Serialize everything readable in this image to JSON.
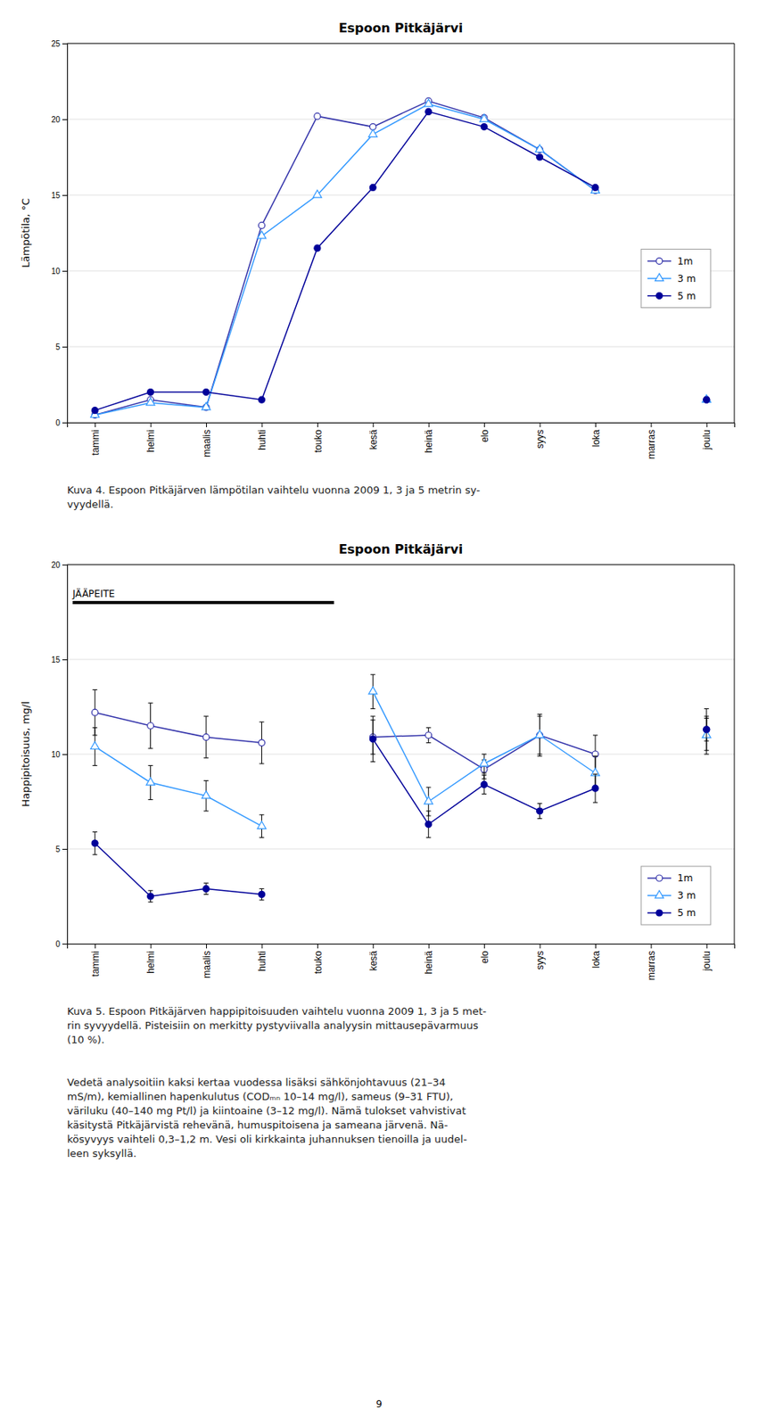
{
  "chart_data": [
    {
      "type": "line",
      "title": "Espoon Pitkäjärvi",
      "ylabel": "Lämpötila, °C",
      "categories": [
        "tammi",
        "helmi",
        "maalis",
        "huhti",
        "touko",
        "kesä",
        "heinä",
        "elo",
        "syys",
        "loka",
        "marras",
        "joulu"
      ],
      "series": [
        {
          "name": "1m",
          "color": "#3333AA",
          "marker": "circle-open",
          "values": [
            0.5,
            1.5,
            1.0,
            13.0,
            20.2,
            19.5,
            21.2,
            20.1,
            18.0,
            15.3,
            null,
            1.5
          ]
        },
        {
          "name": "3 m",
          "color": "#3399FF",
          "marker": "triangle-open",
          "values": [
            0.5,
            1.3,
            1.0,
            12.3,
            15.0,
            19.0,
            21.0,
            20.0,
            18.0,
            15.3,
            null,
            1.5
          ]
        },
        {
          "name": "5 m",
          "color": "#000099",
          "marker": "circle",
          "values": [
            0.8,
            2.0,
            2.0,
            1.5,
            11.5,
            15.5,
            20.5,
            19.5,
            17.5,
            15.5,
            null,
            1.5
          ]
        }
      ],
      "ylim": [
        0,
        25
      ],
      "yticks": [
        0,
        5,
        10,
        15,
        20,
        25
      ],
      "grid": true,
      "legend": "center right",
      "caption": "Kuva 4. Espoon Pitkäjärven lämpötilan vaihtelu vuonna 2009 1, 3 ja 5 metrin sy-\nvyydellä."
    },
    {
      "type": "line",
      "title": "Espoon Pitkäjärvi",
      "ylabel": "Happipitoisuus, mg/l",
      "categories": [
        "tammi",
        "helmi",
        "maalis",
        "huhti",
        "touko",
        "kesä",
        "heinä",
        "elo",
        "syys",
        "loka",
        "marras",
        "joulu"
      ],
      "series": [
        {
          "name": "1m",
          "color": "#3333AA",
          "marker": "circle-open",
          "values": [
            12.2,
            11.5,
            10.9,
            10.6,
            null,
            10.9,
            11.0,
            9.2,
            11.0,
            10.0,
            null,
            11.3
          ],
          "errors": [
            1.2,
            1.2,
            1.1,
            1.1,
            null,
            0.9,
            0.4,
            0.5,
            1.1,
            1.0,
            null,
            1.1
          ]
        },
        {
          "name": "3 m",
          "color": "#3399FF",
          "marker": "triangle-open",
          "values": [
            10.4,
            8.5,
            7.8,
            6.2,
            null,
            13.3,
            7.5,
            9.5,
            11.0,
            9.0,
            null,
            11.0
          ],
          "errors": [
            1.0,
            0.9,
            0.8,
            0.6,
            null,
            0.9,
            0.75,
            0.5,
            1.0,
            0.9,
            null,
            1.0
          ]
        },
        {
          "name": "5 m",
          "color": "#000099",
          "marker": "circle",
          "values": [
            5.3,
            2.5,
            2.9,
            2.6,
            null,
            10.8,
            6.3,
            8.4,
            7.0,
            8.2,
            null,
            11.3
          ],
          "errors": [
            0.6,
            0.3,
            0.3,
            0.3,
            null,
            1.2,
            0.7,
            0.5,
            0.4,
            0.75,
            null,
            0.6
          ]
        }
      ],
      "ylim": [
        0,
        20
      ],
      "yticks": [
        0,
        5,
        10,
        15,
        20
      ],
      "grid": true,
      "legend": "lower right",
      "annotations": [
        {
          "text": "JÄÄPEITE",
          "x": -0.4,
          "x_end": 4.3,
          "y": 18.0
        }
      ],
      "caption": "Kuva 5. Espoon Pitkäjärven happipitoisuuden vaihtelu vuonna 2009 1, 3 ja 5 met-\nrin syvyydellä. Pisteisiin on merkitty pystyviivalla analyysin mittausepävarmuus\n(10 %).",
      "note": "Vedetä analysoitiin kaksi kertaa vuodessa lisäksi sähkönjohtavuus (21–34\nmS/m), kemiallinen hapenkulutus (CODₘₙ 10–14 mg/l), sameus (9–31 FTU),\nväriluku (40–140 mg Pt/l) ja kiintoaine (3–12 mg/l). Nämä tulokset vahvistivat\nkäsitystä Pitkäjärvistä rehevänä, humuspitoisena ja sameana järvenä. Nä-\nkösyvyys vaihteli 0,3–1,2 m. Vesi oli kirkkainta juhannuksen tienoilla ja uudel-\nleen syksyllä."
    }
  ],
  "page_number": "9"
}
